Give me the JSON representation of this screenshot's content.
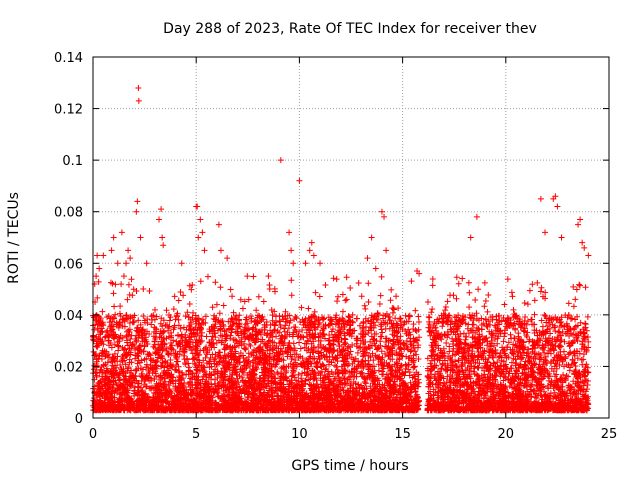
{
  "chart_data": {
    "type": "scatter",
    "title": "Day 288 of 2023, Rate Of TEC Index for receiver thev",
    "xlabel": "GPS time / hours",
    "ylabel": "ROTI / TECUs",
    "xlim": [
      0,
      25
    ],
    "ylim": [
      0,
      0.14
    ],
    "xticks": [
      0,
      5,
      10,
      15,
      20,
      25
    ],
    "yticks": [
      0,
      0.02,
      0.04,
      0.06,
      0.08,
      0.1,
      0.12,
      0.14
    ],
    "xtick_labels": [
      "0",
      "5",
      "10",
      "15",
      "20",
      "25"
    ],
    "ytick_labels": [
      "0",
      "0.02",
      "0.04",
      "0.06",
      "0.08",
      "0.1",
      "0.12",
      "0.14"
    ],
    "grid": true,
    "marker": "+",
    "colors": {
      "series": "#ff0000",
      "grid": "#a0a0a0",
      "axis": "#000000"
    },
    "series": [
      {
        "points": [
          [
            0.1,
            0.045
          ],
          [
            0.15,
            0.055
          ],
          [
            0.2,
            0.063
          ],
          [
            0.3,
            0.058
          ],
          [
            0.5,
            0.063
          ],
          [
            0.9,
            0.065
          ],
          [
            1.0,
            0.07
          ],
          [
            1.2,
            0.06
          ],
          [
            1.4,
            0.072
          ],
          [
            1.5,
            0.055
          ],
          [
            1.6,
            0.06
          ],
          [
            1.7,
            0.065
          ],
          [
            1.8,
            0.062
          ],
          [
            2.1,
            0.08
          ],
          [
            2.15,
            0.084
          ],
          [
            2.2,
            0.128
          ],
          [
            2.22,
            0.123
          ],
          [
            2.3,
            0.07
          ],
          [
            2.6,
            0.06
          ],
          [
            3.2,
            0.077
          ],
          [
            3.3,
            0.081
          ],
          [
            3.35,
            0.07
          ],
          [
            3.4,
            0.067
          ],
          [
            4.3,
            0.06
          ],
          [
            5.0,
            0.082
          ],
          [
            5.05,
            0.082
          ],
          [
            5.1,
            0.07
          ],
          [
            5.2,
            0.077
          ],
          [
            5.3,
            0.072
          ],
          [
            5.4,
            0.065
          ],
          [
            6.1,
            0.075
          ],
          [
            6.2,
            0.065
          ],
          [
            6.5,
            0.062
          ],
          [
            8.5,
            0.055
          ],
          [
            9.1,
            0.1
          ],
          [
            9.5,
            0.072
          ],
          [
            9.6,
            0.065
          ],
          [
            9.7,
            0.06
          ],
          [
            10.0,
            0.092
          ],
          [
            10.3,
            0.06
          ],
          [
            10.5,
            0.065
          ],
          [
            10.6,
            0.068
          ],
          [
            10.7,
            0.063
          ],
          [
            11.0,
            0.06
          ],
          [
            13.3,
            0.062
          ],
          [
            13.5,
            0.07
          ],
          [
            13.7,
            0.058
          ],
          [
            14.0,
            0.08
          ],
          [
            14.1,
            0.078
          ],
          [
            14.2,
            0.065
          ],
          [
            15.7,
            0.057
          ],
          [
            15.8,
            0.056
          ],
          [
            18.3,
            0.07
          ],
          [
            18.6,
            0.078
          ],
          [
            21.7,
            0.085
          ],
          [
            21.9,
            0.072
          ],
          [
            22.3,
            0.085
          ],
          [
            22.4,
            0.086
          ],
          [
            22.5,
            0.082
          ],
          [
            22.7,
            0.07
          ],
          [
            23.5,
            0.075
          ],
          [
            23.6,
            0.077
          ],
          [
            23.7,
            0.068
          ],
          [
            23.8,
            0.066
          ],
          [
            24.0,
            0.063
          ]
        ],
        "dense_band": {
          "description_free": true,
          "intervals": [
            [
              0.0,
              15.8
            ],
            [
              16.2,
              24.0
            ]
          ],
          "y_min": 0.003,
          "y_typical_max": 0.04,
          "y_outlier_max": 0.055
        }
      }
    ]
  }
}
